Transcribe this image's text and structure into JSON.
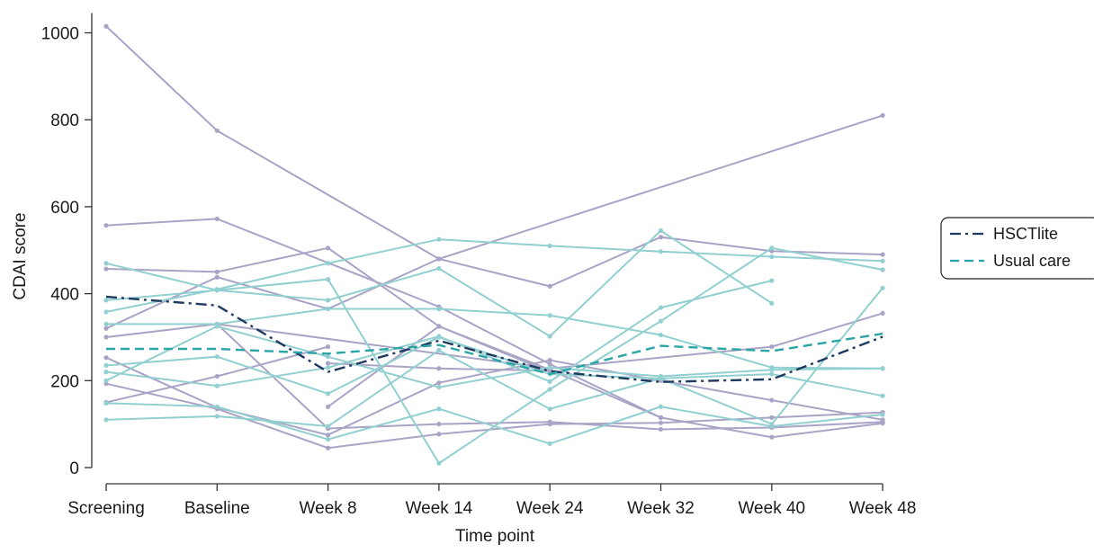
{
  "chart_data": {
    "type": "line",
    "xlabel": "Time point",
    "ylabel": "CDAI score",
    "ylim": [
      0,
      1000
    ],
    "yticks": [
      0,
      200,
      400,
      600,
      800,
      1000
    ],
    "categories": [
      "Screening",
      "Baseline",
      "Week 8",
      "Week 14",
      "Week 24",
      "Week 32",
      "Week 40",
      "Week 48"
    ],
    "legend": {
      "placement": "right",
      "items": [
        "HSCTlite",
        "Usual care"
      ]
    },
    "colors": {
      "hsct_individual": "#a9a4c6",
      "usual_individual": "#92cfd0",
      "hsct_mean": "#1f3a5f",
      "usual_mean": "#2aa5a5",
      "axis": "#333333"
    },
    "summary_series": [
      {
        "name": "HSCTlite",
        "group": "hsct",
        "values": [
          393,
          373,
          220,
          292,
          222,
          197,
          203,
          301
        ]
      },
      {
        "name": "Usual care",
        "group": "usual",
        "values": [
          273,
          273,
          262,
          282,
          215,
          280,
          268,
          308
        ]
      }
    ],
    "individual_series": [
      {
        "group": "hsct",
        "values": [
          1015,
          775,
          null,
          480,
          null,
          null,
          null,
          810
        ]
      },
      {
        "group": "hsct",
        "values": [
          557,
          572,
          null,
          370,
          238,
          115,
          null,
          null
        ]
      },
      {
        "group": "hsct",
        "values": [
          457,
          450,
          505,
          325,
          220,
          null,
          null,
          null
        ]
      },
      {
        "group": "hsct",
        "values": [
          300,
          330,
          null,
          null,
          228,
          null,
          278,
          355
        ]
      },
      {
        "group": "hsct",
        "values": [
          320,
          438,
          365,
          480,
          417,
          530,
          498,
          490
        ]
      },
      {
        "group": "hsct",
        "values": [
          253,
          138,
          75,
          195,
          247,
          200,
          155,
          110
        ]
      },
      {
        "group": "hsct",
        "values": [
          150,
          210,
          278,
          null,
          null,
          null,
          null,
          null
        ]
      },
      {
        "group": "hsct",
        "values": [
          193,
          135,
          45,
          77,
          100,
          103,
          115,
          127
        ]
      },
      {
        "group": "hsct",
        "values": [
          null,
          null,
          140,
          325,
          225,
          115,
          70,
          102
        ]
      },
      {
        "group": "hsct",
        "values": [
          null,
          330,
          90,
          100,
          105,
          88,
          92,
          105
        ]
      },
      {
        "group": "hsct",
        "values": [
          null,
          null,
          240,
          228,
          223,
          null,
          null,
          null
        ]
      },
      {
        "group": "usual",
        "values": [
          470,
          408,
          433,
          10,
          180,
          337,
          505,
          455
        ]
      },
      {
        "group": "usual",
        "values": [
          385,
          408,
          385,
          458,
          302,
          545,
          378,
          null
        ]
      },
      {
        "group": "usual",
        "values": [
          358,
          410,
          470,
          525,
          510,
          497,
          485,
          475
        ]
      },
      {
        "group": "usual",
        "values": [
          330,
          330,
          365,
          365,
          350,
          305,
          230,
          228
        ]
      },
      {
        "group": "usual",
        "values": [
          235,
          255,
          170,
          300,
          215,
          205,
          215,
          165
        ]
      },
      {
        "group": "usual",
        "values": [
          220,
          188,
          230,
          302,
          198,
          368,
          430,
          null
        ]
      },
      {
        "group": "usual",
        "values": [
          148,
          140,
          65,
          135,
          55,
          140,
          95,
          122
        ]
      },
      {
        "group": "usual",
        "values": [
          110,
          118,
          95,
          270,
          135,
          205,
          100,
          413
        ]
      },
      {
        "group": "usual",
        "values": [
          200,
          325,
          255,
          185,
          230,
          210,
          225,
          228
        ]
      }
    ]
  }
}
